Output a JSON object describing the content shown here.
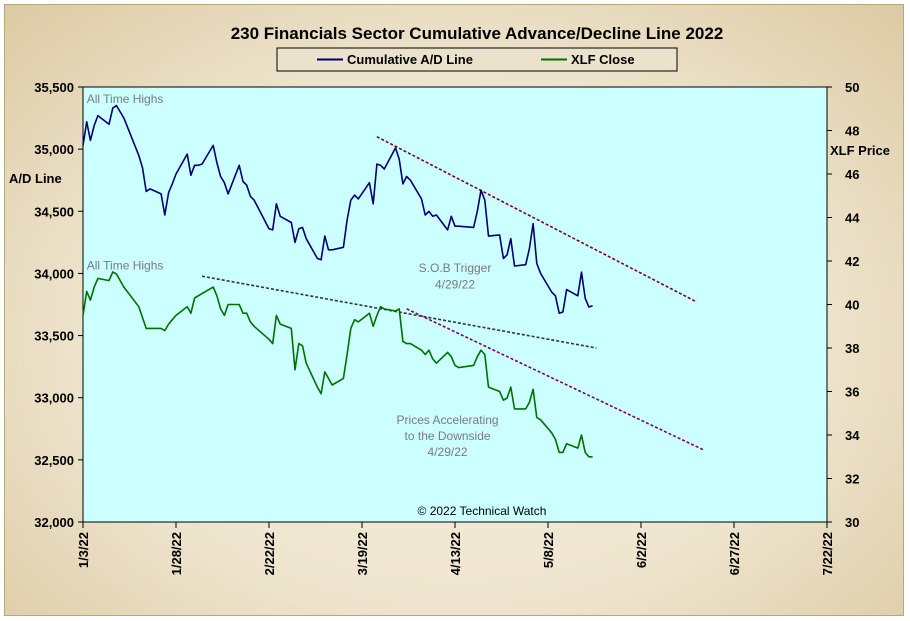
{
  "chart_data": {
    "type": "line",
    "title": "230 Financials  Sector Cumulative  Advance/Decline  Line 2022",
    "ylabel": "A/D Line",
    "y2label": "XLF Price",
    "ylim": [
      32000,
      35500
    ],
    "y2lim": [
      30,
      50
    ],
    "xlim": [
      "2022-01-03",
      "2022-07-22"
    ],
    "grid": false,
    "legend": "top-center",
    "yticks": [
      "32,000",
      "32,500",
      "33,000",
      "33,500",
      "34,000",
      "34,500",
      "35,000",
      "35,500"
    ],
    "y2ticks": [
      "30",
      "32",
      "34",
      "36",
      "38",
      "40",
      "42",
      "44",
      "46",
      "48",
      "50"
    ],
    "xticks": [
      {
        "date": "2022-01-03",
        "label": "1/3/22"
      },
      {
        "date": "2022-01-28",
        "label": "1/28/22"
      },
      {
        "date": "2022-02-22",
        "label": "2/22/22"
      },
      {
        "date": "2022-03-19",
        "label": "3/19/22"
      },
      {
        "date": "2022-04-13",
        "label": "4/13/22"
      },
      {
        "date": "2022-05-08",
        "label": "5/8/22"
      },
      {
        "date": "2022-06-02",
        "label": "6/2/22"
      },
      {
        "date": "2022-06-27",
        "label": "6/27/22"
      },
      {
        "date": "2022-07-22",
        "label": "7/22/22"
      }
    ],
    "series": [
      {
        "name": "Cumulative A/D Line",
        "axis": "left",
        "color": "#000070",
        "points": [
          [
            "2022-01-03",
            35030
          ],
          [
            "2022-01-04",
            35220
          ],
          [
            "2022-01-05",
            35070
          ],
          [
            "2022-01-06",
            35190
          ],
          [
            "2022-01-07",
            35270
          ],
          [
            "2022-01-10",
            35200
          ],
          [
            "2022-01-11",
            35330
          ],
          [
            "2022-01-12",
            35350
          ],
          [
            "2022-01-13",
            35300
          ],
          [
            "2022-01-14",
            35250
          ],
          [
            "2022-01-18",
            34950
          ],
          [
            "2022-01-19",
            34850
          ],
          [
            "2022-01-20",
            34660
          ],
          [
            "2022-01-21",
            34680
          ],
          [
            "2022-01-24",
            34640
          ],
          [
            "2022-01-25",
            34470
          ],
          [
            "2022-01-26",
            34650
          ],
          [
            "2022-01-27",
            34720
          ],
          [
            "2022-01-28",
            34800
          ],
          [
            "2022-01-31",
            34960
          ],
          [
            "2022-02-01",
            34790
          ],
          [
            "2022-02-02",
            34870
          ],
          [
            "2022-02-03",
            34870
          ],
          [
            "2022-02-04",
            34880
          ],
          [
            "2022-02-07",
            35030
          ],
          [
            "2022-02-08",
            34890
          ],
          [
            "2022-02-09",
            34780
          ],
          [
            "2022-02-10",
            34730
          ],
          [
            "2022-02-11",
            34640
          ],
          [
            "2022-02-14",
            34870
          ],
          [
            "2022-02-15",
            34740
          ],
          [
            "2022-02-16",
            34710
          ],
          [
            "2022-02-17",
            34620
          ],
          [
            "2022-02-18",
            34590
          ],
          [
            "2022-02-22",
            34360
          ],
          [
            "2022-02-23",
            34350
          ],
          [
            "2022-02-24",
            34560
          ],
          [
            "2022-02-25",
            34460
          ],
          [
            "2022-02-28",
            34410
          ],
          [
            "2022-03-01",
            34250
          ],
          [
            "2022-03-02",
            34360
          ],
          [
            "2022-03-03",
            34370
          ],
          [
            "2022-03-04",
            34280
          ],
          [
            "2022-03-07",
            34120
          ],
          [
            "2022-03-08",
            34110
          ],
          [
            "2022-03-09",
            34300
          ],
          [
            "2022-03-10",
            34190
          ],
          [
            "2022-03-11",
            34190
          ],
          [
            "2022-03-14",
            34210
          ],
          [
            "2022-03-15",
            34430
          ],
          [
            "2022-03-16",
            34590
          ],
          [
            "2022-03-17",
            34630
          ],
          [
            "2022-03-18",
            34600
          ],
          [
            "2022-03-21",
            34730
          ],
          [
            "2022-03-22",
            34560
          ],
          [
            "2022-03-23",
            34880
          ],
          [
            "2022-03-24",
            34870
          ],
          [
            "2022-03-25",
            34840
          ],
          [
            "2022-03-28",
            35010
          ],
          [
            "2022-03-29",
            34920
          ],
          [
            "2022-03-30",
            34720
          ],
          [
            "2022-03-31",
            34780
          ],
          [
            "2022-04-01",
            34750
          ],
          [
            "2022-04-04",
            34600
          ],
          [
            "2022-04-05",
            34470
          ],
          [
            "2022-04-06",
            34500
          ],
          [
            "2022-04-07",
            34460
          ],
          [
            "2022-04-08",
            34470
          ],
          [
            "2022-04-11",
            34350
          ],
          [
            "2022-04-12",
            34460
          ],
          [
            "2022-04-13",
            34380
          ],
          [
            "2022-04-14",
            34380
          ],
          [
            "2022-04-18",
            34370
          ],
          [
            "2022-04-19",
            34500
          ],
          [
            "2022-04-20",
            34670
          ],
          [
            "2022-04-21",
            34590
          ],
          [
            "2022-04-22",
            34300
          ],
          [
            "2022-04-25",
            34310
          ],
          [
            "2022-04-26",
            34120
          ],
          [
            "2022-04-27",
            34150
          ],
          [
            "2022-04-28",
            34280
          ],
          [
            "2022-04-29",
            34060
          ],
          [
            "2022-05-02",
            34070
          ],
          [
            "2022-05-03",
            34200
          ],
          [
            "2022-05-04",
            34400
          ],
          [
            "2022-05-05",
            34080
          ],
          [
            "2022-05-06",
            34000
          ],
          [
            "2022-05-09",
            33850
          ],
          [
            "2022-05-10",
            33820
          ],
          [
            "2022-05-11",
            33680
          ],
          [
            "2022-05-12",
            33690
          ],
          [
            "2022-05-13",
            33870
          ],
          [
            "2022-05-16",
            33820
          ],
          [
            "2022-05-17",
            34010
          ],
          [
            "2022-05-18",
            33800
          ],
          [
            "2022-05-19",
            33730
          ],
          [
            "2022-05-20",
            33740
          ]
        ]
      },
      {
        "name": "XLF Close",
        "axis": "right",
        "color": "#007000",
        "points": [
          [
            "2022-01-03",
            39.5
          ],
          [
            "2022-01-04",
            40.6
          ],
          [
            "2022-01-05",
            40.2
          ],
          [
            "2022-01-06",
            40.8
          ],
          [
            "2022-01-07",
            41.2
          ],
          [
            "2022-01-10",
            41.1
          ],
          [
            "2022-01-11",
            41.5
          ],
          [
            "2022-01-12",
            41.4
          ],
          [
            "2022-01-13",
            41.1
          ],
          [
            "2022-01-14",
            40.8
          ],
          [
            "2022-01-18",
            39.9
          ],
          [
            "2022-01-19",
            39.4
          ],
          [
            "2022-01-20",
            38.9
          ],
          [
            "2022-01-21",
            38.9
          ],
          [
            "2022-01-24",
            38.9
          ],
          [
            "2022-01-25",
            38.8
          ],
          [
            "2022-01-26",
            39.1
          ],
          [
            "2022-01-27",
            39.3
          ],
          [
            "2022-01-28",
            39.5
          ],
          [
            "2022-01-31",
            39.9
          ],
          [
            "2022-02-01",
            39.6
          ],
          [
            "2022-02-02",
            40.3
          ],
          [
            "2022-02-03",
            40.4
          ],
          [
            "2022-02-04",
            40.5
          ],
          [
            "2022-02-07",
            40.8
          ],
          [
            "2022-02-08",
            40.4
          ],
          [
            "2022-02-09",
            39.8
          ],
          [
            "2022-02-10",
            39.5
          ],
          [
            "2022-02-11",
            40.0
          ],
          [
            "2022-02-14",
            40.0
          ],
          [
            "2022-02-15",
            39.6
          ],
          [
            "2022-02-16",
            39.6
          ],
          [
            "2022-02-17",
            39.2
          ],
          [
            "2022-02-18",
            39.0
          ],
          [
            "2022-02-22",
            38.4
          ],
          [
            "2022-02-23",
            38.2
          ],
          [
            "2022-02-24",
            39.5
          ],
          [
            "2022-02-25",
            39.1
          ],
          [
            "2022-02-28",
            38.9
          ],
          [
            "2022-03-01",
            37.0
          ],
          [
            "2022-03-02",
            38.2
          ],
          [
            "2022-03-03",
            38.1
          ],
          [
            "2022-03-04",
            37.3
          ],
          [
            "2022-03-07",
            36.2
          ],
          [
            "2022-03-08",
            35.9
          ],
          [
            "2022-03-09",
            36.9
          ],
          [
            "2022-03-10",
            36.6
          ],
          [
            "2022-03-11",
            36.3
          ],
          [
            "2022-03-14",
            36.6
          ],
          [
            "2022-03-15",
            37.7
          ],
          [
            "2022-03-16",
            38.9
          ],
          [
            "2022-03-17",
            39.3
          ],
          [
            "2022-03-18",
            39.2
          ],
          [
            "2022-03-21",
            39.6
          ],
          [
            "2022-03-22",
            39.0
          ],
          [
            "2022-03-23",
            39.5
          ],
          [
            "2022-03-24",
            39.9
          ],
          [
            "2022-03-25",
            39.8
          ],
          [
            "2022-03-28",
            39.7
          ],
          [
            "2022-03-29",
            39.8
          ],
          [
            "2022-03-30",
            38.3
          ],
          [
            "2022-03-31",
            38.2
          ],
          [
            "2022-04-01",
            38.2
          ],
          [
            "2022-04-04",
            37.9
          ],
          [
            "2022-04-05",
            37.7
          ],
          [
            "2022-04-06",
            37.9
          ],
          [
            "2022-04-07",
            37.5
          ],
          [
            "2022-04-08",
            37.3
          ],
          [
            "2022-04-11",
            37.8
          ],
          [
            "2022-04-12",
            37.6
          ],
          [
            "2022-04-13",
            37.2
          ],
          [
            "2022-04-14",
            37.1
          ],
          [
            "2022-04-18",
            37.2
          ],
          [
            "2022-04-19",
            37.6
          ],
          [
            "2022-04-20",
            37.9
          ],
          [
            "2022-04-21",
            37.7
          ],
          [
            "2022-04-22",
            36.2
          ],
          [
            "2022-04-25",
            36.0
          ],
          [
            "2022-04-26",
            35.6
          ],
          [
            "2022-04-27",
            35.7
          ],
          [
            "2022-04-28",
            36.2
          ],
          [
            "2022-04-29",
            35.2
          ],
          [
            "2022-05-02",
            35.2
          ],
          [
            "2022-05-03",
            35.5
          ],
          [
            "2022-05-04",
            36.1
          ],
          [
            "2022-05-05",
            34.8
          ],
          [
            "2022-05-06",
            34.7
          ],
          [
            "2022-05-09",
            34.1
          ],
          [
            "2022-05-10",
            33.8
          ],
          [
            "2022-05-11",
            33.2
          ],
          [
            "2022-05-12",
            33.2
          ],
          [
            "2022-05-13",
            33.6
          ],
          [
            "2022-05-16",
            33.4
          ],
          [
            "2022-05-17",
            34.0
          ],
          [
            "2022-05-18",
            33.2
          ],
          [
            "2022-05-19",
            33.0
          ],
          [
            "2022-05-20",
            33.0
          ]
        ]
      }
    ],
    "trendlines": [
      {
        "axis": "left",
        "color": "#800020",
        "from": [
          "2022-03-23",
          35100
        ],
        "to": [
          "2022-06-17",
          33770
        ]
      },
      {
        "axis": "right",
        "color": "#333333",
        "from": [
          "2022-02-04",
          41.3
        ],
        "to": [
          "2022-05-21",
          38.0
        ]
      },
      {
        "axis": "right",
        "color": "#800060",
        "from": [
          "2022-03-31",
          39.8
        ],
        "to": [
          "2022-06-19",
          33.3
        ]
      }
    ],
    "annotations": [
      {
        "text": "All Time Highs",
        "axis": "left",
        "at": [
          "2022-01-04",
          35370
        ]
      },
      {
        "text": "All Time Highs",
        "axis": "left",
        "at": [
          "2022-01-04",
          34030
        ]
      },
      {
        "text": "S.O.B  Trigger",
        "axis": "left",
        "at": [
          "2022-04-13",
          34010
        ]
      },
      {
        "text": "4/29/22",
        "axis": "left",
        "at": [
          "2022-04-13",
          33880
        ]
      },
      {
        "text": "Prices Accelerating",
        "axis": "left",
        "at": [
          "2022-04-11",
          32790
        ]
      },
      {
        "text": "to the Downside",
        "axis": "left",
        "at": [
          "2022-04-11",
          32660
        ]
      },
      {
        "text": "4/29/22",
        "axis": "left",
        "at": [
          "2022-04-11",
          32530
        ]
      }
    ],
    "copyright": "© 2022 Technical Watch"
  }
}
